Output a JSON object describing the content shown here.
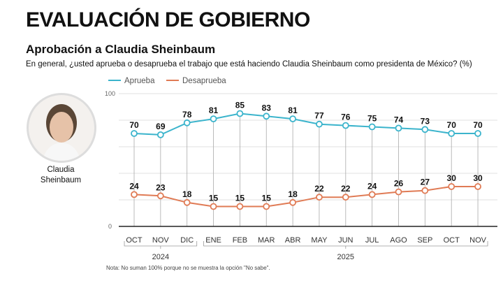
{
  "header": {
    "title": "EVALUACIÓN DE GOBIERNO",
    "subtitle": "Aprobación a Claudia Sheinbaum",
    "question": "En general, ¿usted aprueba o desaprueba el trabajo que está haciendo Claudia Sheinbaum como presidenta de México? (%)"
  },
  "person": {
    "line1": "Claudia",
    "line2": "Sheinbaum"
  },
  "note": "Nota: No suman 100% porque no se muestra la opción \"No sabe\".",
  "chart_data": {
    "type": "line",
    "categories": [
      "OCT",
      "NOV",
      "DIC",
      "ENE",
      "FEB",
      "MAR",
      "ABR",
      "MAY",
      "JUN",
      "JUL",
      "AGO",
      "SEP",
      "OCT",
      "NOV"
    ],
    "year_groups": [
      {
        "label": "2024",
        "from": 0,
        "to": 2
      },
      {
        "label": "2025",
        "from": 3,
        "to": 13
      }
    ],
    "series": [
      {
        "name": "Aprueba",
        "color": "#3bb4cc",
        "values": [
          70,
          69,
          78,
          81,
          85,
          83,
          81,
          77,
          76,
          75,
          74,
          73,
          70,
          70
        ]
      },
      {
        "name": "Desaprueba",
        "color": "#e07b55",
        "values": [
          24,
          23,
          18,
          15,
          15,
          15,
          18,
          22,
          22,
          24,
          26,
          27,
          30,
          30
        ]
      }
    ],
    "ylim": [
      0,
      100
    ],
    "yticks": [
      "0",
      "100"
    ],
    "grid": true,
    "legend": "top-left"
  }
}
